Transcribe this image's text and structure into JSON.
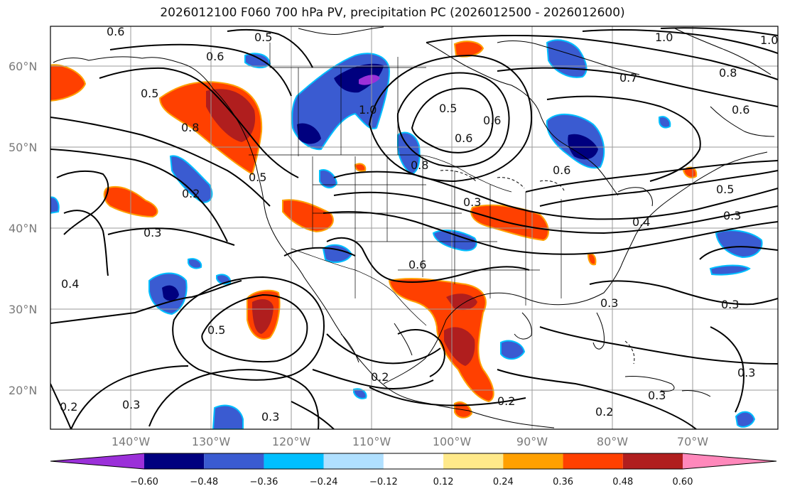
{
  "title": "2026012100 F060 700 hPa PV, precipitation PC (2026012500 - 2026012600)",
  "lon_labels": [
    "140°W",
    "130°W",
    "120°W",
    "110°W",
    "100°W",
    "90°W",
    "80°W",
    "70°W"
  ],
  "lat_labels": [
    "60°N",
    "50°N",
    "40°N",
    "30°N",
    "20°N"
  ],
  "colorbar": {
    "tick_labels": [
      "−0.60",
      "−0.48",
      "−0.36",
      "−0.24",
      "−0.12",
      "0.12",
      "0.24",
      "0.36",
      "0.48",
      "0.60"
    ],
    "colors": [
      "#9b30d9",
      "#00007f",
      "#3a5bd1",
      "#00bfff",
      "#b0e0ff",
      "#ffffff",
      "#ffe98a",
      "#ffa000",
      "#ff4000",
      "#b01e1e",
      "#ff88bb"
    ]
  },
  "contour_labels": [
    "0.5",
    "0.6",
    "0.5",
    "0.6",
    "1.0",
    "0.5",
    "0.6",
    "0.8",
    "0.7",
    "1.0",
    "1.0",
    "0.8",
    "0.6",
    "0.5",
    "0.3",
    "0.3",
    "0.4",
    "0.2",
    "0.4",
    "0.3",
    "0.5",
    "0.3",
    "0.3",
    "0.2",
    "0.2",
    "0.6",
    "0.3",
    "0.3",
    "0.2",
    "0.3",
    "0.3",
    "0.5",
    "0.2",
    "0.6",
    "0.8",
    "0.6"
  ]
}
